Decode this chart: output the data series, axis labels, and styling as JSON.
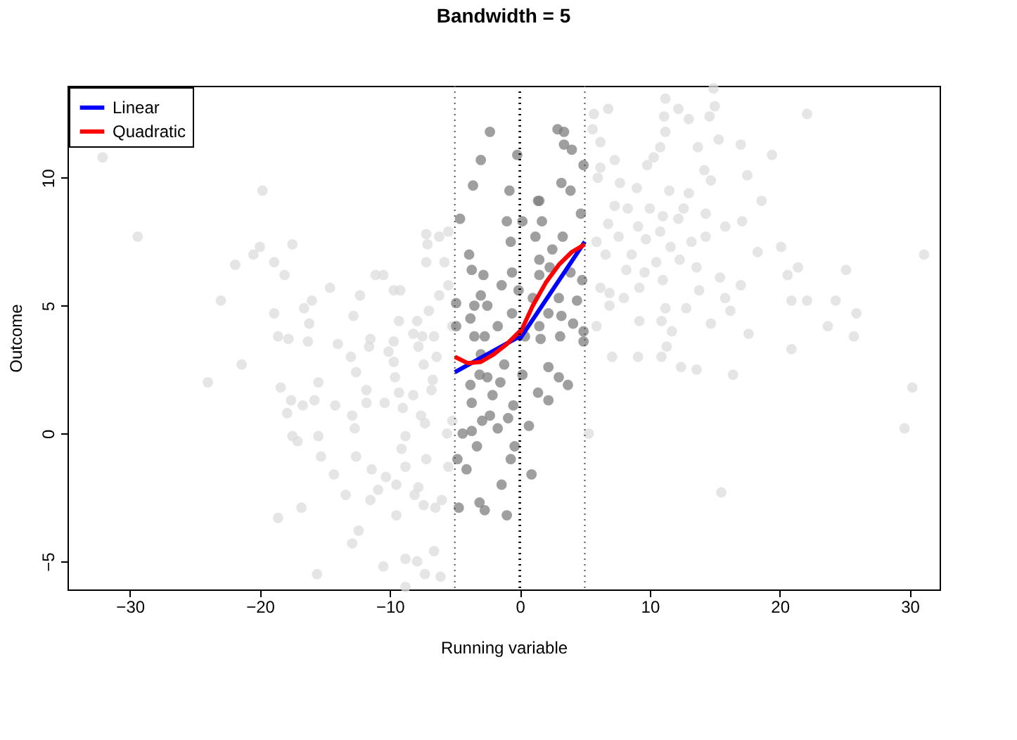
{
  "chart_data": {
    "type": "scatter",
    "title": "Bandwidth = 5",
    "xlabel": "Running variable",
    "ylabel": "Outcome",
    "xlim": [
      -34.8,
      32.3
    ],
    "ylim": [
      -6.1,
      13.6
    ],
    "xticks": [
      -30,
      -20,
      -10,
      0,
      10,
      20,
      30
    ],
    "yticks": [
      -5,
      0,
      5,
      10
    ],
    "grid": false,
    "legend": "top left",
    "ref_lines": [
      {
        "axis": "x",
        "value": -5,
        "color": "#555555",
        "line_style": "dotted"
      },
      {
        "axis": "x",
        "value": 0,
        "color": "#000000",
        "line_style": "dotted"
      },
      {
        "axis": "x",
        "value": 5,
        "color": "#555555",
        "line_style": "dotted"
      }
    ],
    "series": [
      {
        "type": "scatter",
        "marker": "circle",
        "color": "#dcdcdc",
        "x": [
          -32.1,
          -29.4,
          -19.8,
          -24.0,
          -23.0,
          -21.9,
          -20.5,
          -20.0,
          -18.9,
          -17.5,
          -18.1,
          -21.4,
          -18.9,
          -18.6,
          -17.8,
          -18.4,
          -17.6,
          -16.7,
          -17.9,
          -17.5,
          -17.1,
          -15.5,
          -15.3,
          -18.6,
          -16.8,
          -15.6,
          -12.9,
          -12.4,
          -14.3,
          -13.4,
          -14.2,
          -14.0,
          -15.5,
          -15.8,
          -16.3,
          -16.2,
          -16.6,
          -16.0,
          -14.6,
          -12.8,
          -13.0,
          -12.6,
          -12.3,
          -11.8,
          -11.6,
          -11.5,
          -11.8,
          -12.9,
          -12.7,
          -12.6,
          -11.4,
          -11.5,
          -10.9,
          -10.3,
          -11.1,
          -10.5,
          -9.7,
          -9.2,
          -9.3,
          -10.1,
          -9.7,
          -9.7,
          -9.6,
          -9.3,
          -9.0,
          -10.4,
          -8.8,
          -9.1,
          -8.8,
          -9.5,
          -9.5,
          -8.8,
          -10.5,
          -8.8,
          -7.9,
          -7.3,
          -6.6,
          -6.1,
          -7.9,
          -8.2,
          -7.5,
          -7.8,
          -7.0,
          -7.2,
          -7.2,
          -7.1,
          -6.2,
          -5.5,
          -5.8,
          -6.2,
          -5.5,
          -6.6,
          -6.4,
          -6.7,
          -7.4,
          -8.2,
          -7.6,
          -7.3,
          -6.8,
          -7.2,
          -7.8,
          -8.1,
          -7.4,
          -6.5,
          -6.0,
          -5.5,
          -5.2,
          -5.6,
          -5.2,
          14.9,
          11.2,
          12.2,
          13.0,
          15.0,
          14.6,
          11.1,
          6.8,
          5.7,
          5.6,
          6.2,
          11.2,
          10.8,
          22.1,
          15.3,
          17.0,
          13.7,
          19.4,
          7.3,
          10.3,
          9.8,
          14.2,
          14.7,
          17.5,
          6.2,
          6.0,
          7.7,
          9.0,
          11.5,
          13.0,
          7.3,
          8.3,
          10.0,
          12.6,
          14.3,
          18.6,
          11.0,
          12.2,
          9.1,
          6.8,
          15.8,
          17.1,
          5.9,
          7.6,
          9.7,
          10.8,
          13.2,
          14.3,
          11.6,
          18.3,
          20.1,
          31.1,
          6.6,
          8.6,
          10.5,
          12.3,
          13.6,
          9.6,
          8.2,
          11.0,
          15.4,
          17.0,
          20.6,
          21.4,
          25.1,
          6.2,
          6.9,
          8.0,
          9.2,
          13.8,
          15.8,
          20.9,
          22.1,
          24.3,
          25.9,
          6.9,
          11.2,
          12.8,
          16.2,
          5.9,
          9.2,
          10.9,
          14.7,
          23.7,
          25.7,
          11.7,
          17.6,
          11.3,
          20.9,
          7.1,
          9.1,
          10.9,
          12.4,
          13.6,
          16.4,
          30.2,
          29.6,
          15.5,
          5.3
        ],
        "values": [
          10.8,
          7.7,
          9.5,
          2.0,
          5.2,
          6.6,
          7.0,
          7.3,
          6.7,
          7.4,
          6.2,
          2.7,
          4.7,
          3.8,
          3.7,
          1.8,
          1.3,
          1.1,
          0.8,
          -0.1,
          -0.3,
          -0.1,
          -0.9,
          -3.3,
          -2.9,
          -5.5,
          -4.3,
          -3.8,
          -1.6,
          -2.4,
          1.1,
          3.5,
          2.0,
          1.3,
          3.6,
          4.3,
          4.9,
          5.2,
          5.7,
          4.6,
          3.0,
          2.4,
          5.4,
          1.7,
          3.4,
          3.7,
          1.2,
          0.7,
          0.2,
          -0.9,
          -1.4,
          -2.6,
          -2.2,
          -1.7,
          6.2,
          6.2,
          5.6,
          5.6,
          4.4,
          3.2,
          3.6,
          2.8,
          2.2,
          1.6,
          1.0,
          1.2,
          -0.1,
          -0.6,
          -1.3,
          -2.0,
          -3.2,
          -4.9,
          -5.2,
          -6.0,
          -5.0,
          -5.5,
          -4.6,
          -5.6,
          4.4,
          3.9,
          3.8,
          3.4,
          4.8,
          6.7,
          7.8,
          7.4,
          7.7,
          7.9,
          6.7,
          5.4,
          5.8,
          3.8,
          3.0,
          2.1,
          2.7,
          1.5,
          0.7,
          0.4,
          1.7,
          -1.0,
          -2.1,
          -2.4,
          -2.8,
          -2.9,
          -2.6,
          -1.3,
          0.5,
          0.0,
          4.2,
          13.5,
          13.1,
          12.7,
          12.3,
          12.8,
          12.4,
          12.4,
          12.7,
          12.5,
          11.9,
          11.4,
          11.8,
          11.2,
          12.5,
          11.5,
          11.3,
          11.2,
          10.9,
          10.7,
          10.8,
          10.5,
          10.3,
          9.9,
          10.1,
          10.4,
          10.0,
          9.8,
          9.6,
          9.5,
          9.4,
          8.9,
          8.8,
          8.8,
          8.8,
          8.6,
          9.1,
          8.5,
          8.4,
          8.1,
          8.2,
          8.1,
          8.3,
          7.5,
          7.7,
          7.6,
          7.9,
          7.5,
          7.7,
          7.3,
          7.1,
          7.3,
          7.0,
          7.0,
          7.0,
          6.7,
          6.8,
          6.5,
          6.3,
          6.4,
          6.0,
          6.1,
          5.8,
          6.2,
          6.5,
          6.4,
          5.7,
          5.5,
          5.3,
          5.7,
          5.6,
          5.3,
          5.2,
          5.2,
          5.2,
          4.7,
          5.0,
          4.9,
          4.9,
          4.8,
          4.2,
          4.4,
          4.4,
          4.3,
          4.2,
          3.8,
          4.0,
          3.9,
          3.4,
          3.3,
          3.0,
          3.0,
          3.0,
          2.6,
          2.5,
          2.3,
          1.8,
          0.2,
          -2.3,
          0.0
        ]
      },
      {
        "type": "scatter",
        "marker": "circle",
        "color": "#7f7f7f",
        "x": [
          -2.3,
          -3.0,
          -3.6,
          -4.6,
          -0.2,
          -0.8,
          2.9,
          3.4,
          3.4,
          4.0,
          4.9,
          3.2,
          3.9,
          1.5,
          1.4,
          0.2,
          -1.0,
          1.7,
          -0.7,
          1.2,
          3.3,
          4.7,
          -3.9,
          1.5,
          2.5,
          -3.7,
          -2.8,
          -0.6,
          1.5,
          2.3,
          3.9,
          4.8,
          -1.4,
          -0.1,
          -3.0,
          -3.5,
          -4.9,
          1.0,
          3.0,
          4.4,
          -2.5,
          -0.6,
          2.2,
          3.2,
          -3.8,
          -1.7,
          1.5,
          4.1,
          4.9,
          -4.9,
          -3.5,
          -2.7,
          0.4,
          1.6,
          3.1,
          4.9,
          -3.0,
          -1.2,
          2.2,
          -3.1,
          -2.5,
          0.2,
          3.0,
          -3.8,
          -1.5,
          3.7,
          -3.7,
          -2.1,
          -0.5,
          1.4,
          2.2,
          -2.3,
          -0.9,
          -2.9,
          -3.7,
          -1.7,
          0.7,
          -4.4,
          -0.4,
          -3.3,
          -4.8,
          -4.1,
          -0.7,
          0.9,
          -1.4,
          -4.7,
          -3.1,
          -2.7,
          -1.0
        ],
        "values": [
          11.8,
          10.7,
          9.7,
          8.4,
          10.9,
          9.5,
          11.9,
          11.8,
          11.3,
          11.1,
          10.5,
          9.8,
          9.5,
          9.1,
          9.1,
          8.3,
          8.3,
          8.3,
          7.5,
          7.7,
          7.7,
          8.6,
          7.0,
          6.8,
          7.2,
          6.4,
          6.2,
          6.3,
          6.2,
          6.5,
          6.3,
          6.0,
          5.8,
          5.6,
          5.4,
          5.0,
          5.1,
          5.3,
          5.3,
          5.2,
          5.0,
          4.7,
          4.7,
          4.6,
          4.5,
          4.2,
          4.2,
          4.3,
          4.0,
          4.2,
          3.8,
          3.8,
          3.8,
          3.7,
          3.8,
          3.6,
          3.1,
          2.7,
          2.6,
          2.3,
          2.2,
          2.3,
          2.2,
          1.9,
          2.0,
          1.9,
          1.2,
          1.5,
          1.1,
          1.6,
          1.3,
          0.7,
          0.6,
          0.5,
          0.1,
          0.2,
          0.3,
          0.0,
          -0.5,
          -0.5,
          -1.0,
          -1.4,
          -1.0,
          -1.6,
          -2.0,
          -2.9,
          -2.7,
          -3.0,
          -3.2
        ]
      },
      {
        "type": "line",
        "name": "Linear",
        "marker": "none",
        "color": "#0000ff",
        "x": [
          -5,
          0,
          0,
          5
        ],
        "values": [
          2.4,
          3.8,
          3.7,
          7.5
        ]
      },
      {
        "type": "line",
        "name": "Quadratic",
        "marker": "none",
        "color": "#ff0000",
        "x": [
          -5,
          -4,
          -3,
          -2,
          -1,
          0,
          0,
          1,
          2,
          3,
          4,
          5
        ],
        "values": [
          3.0,
          2.75,
          2.8,
          3.1,
          3.5,
          4.0,
          3.9,
          5.0,
          5.9,
          6.6,
          7.1,
          7.4
        ]
      }
    ]
  }
}
